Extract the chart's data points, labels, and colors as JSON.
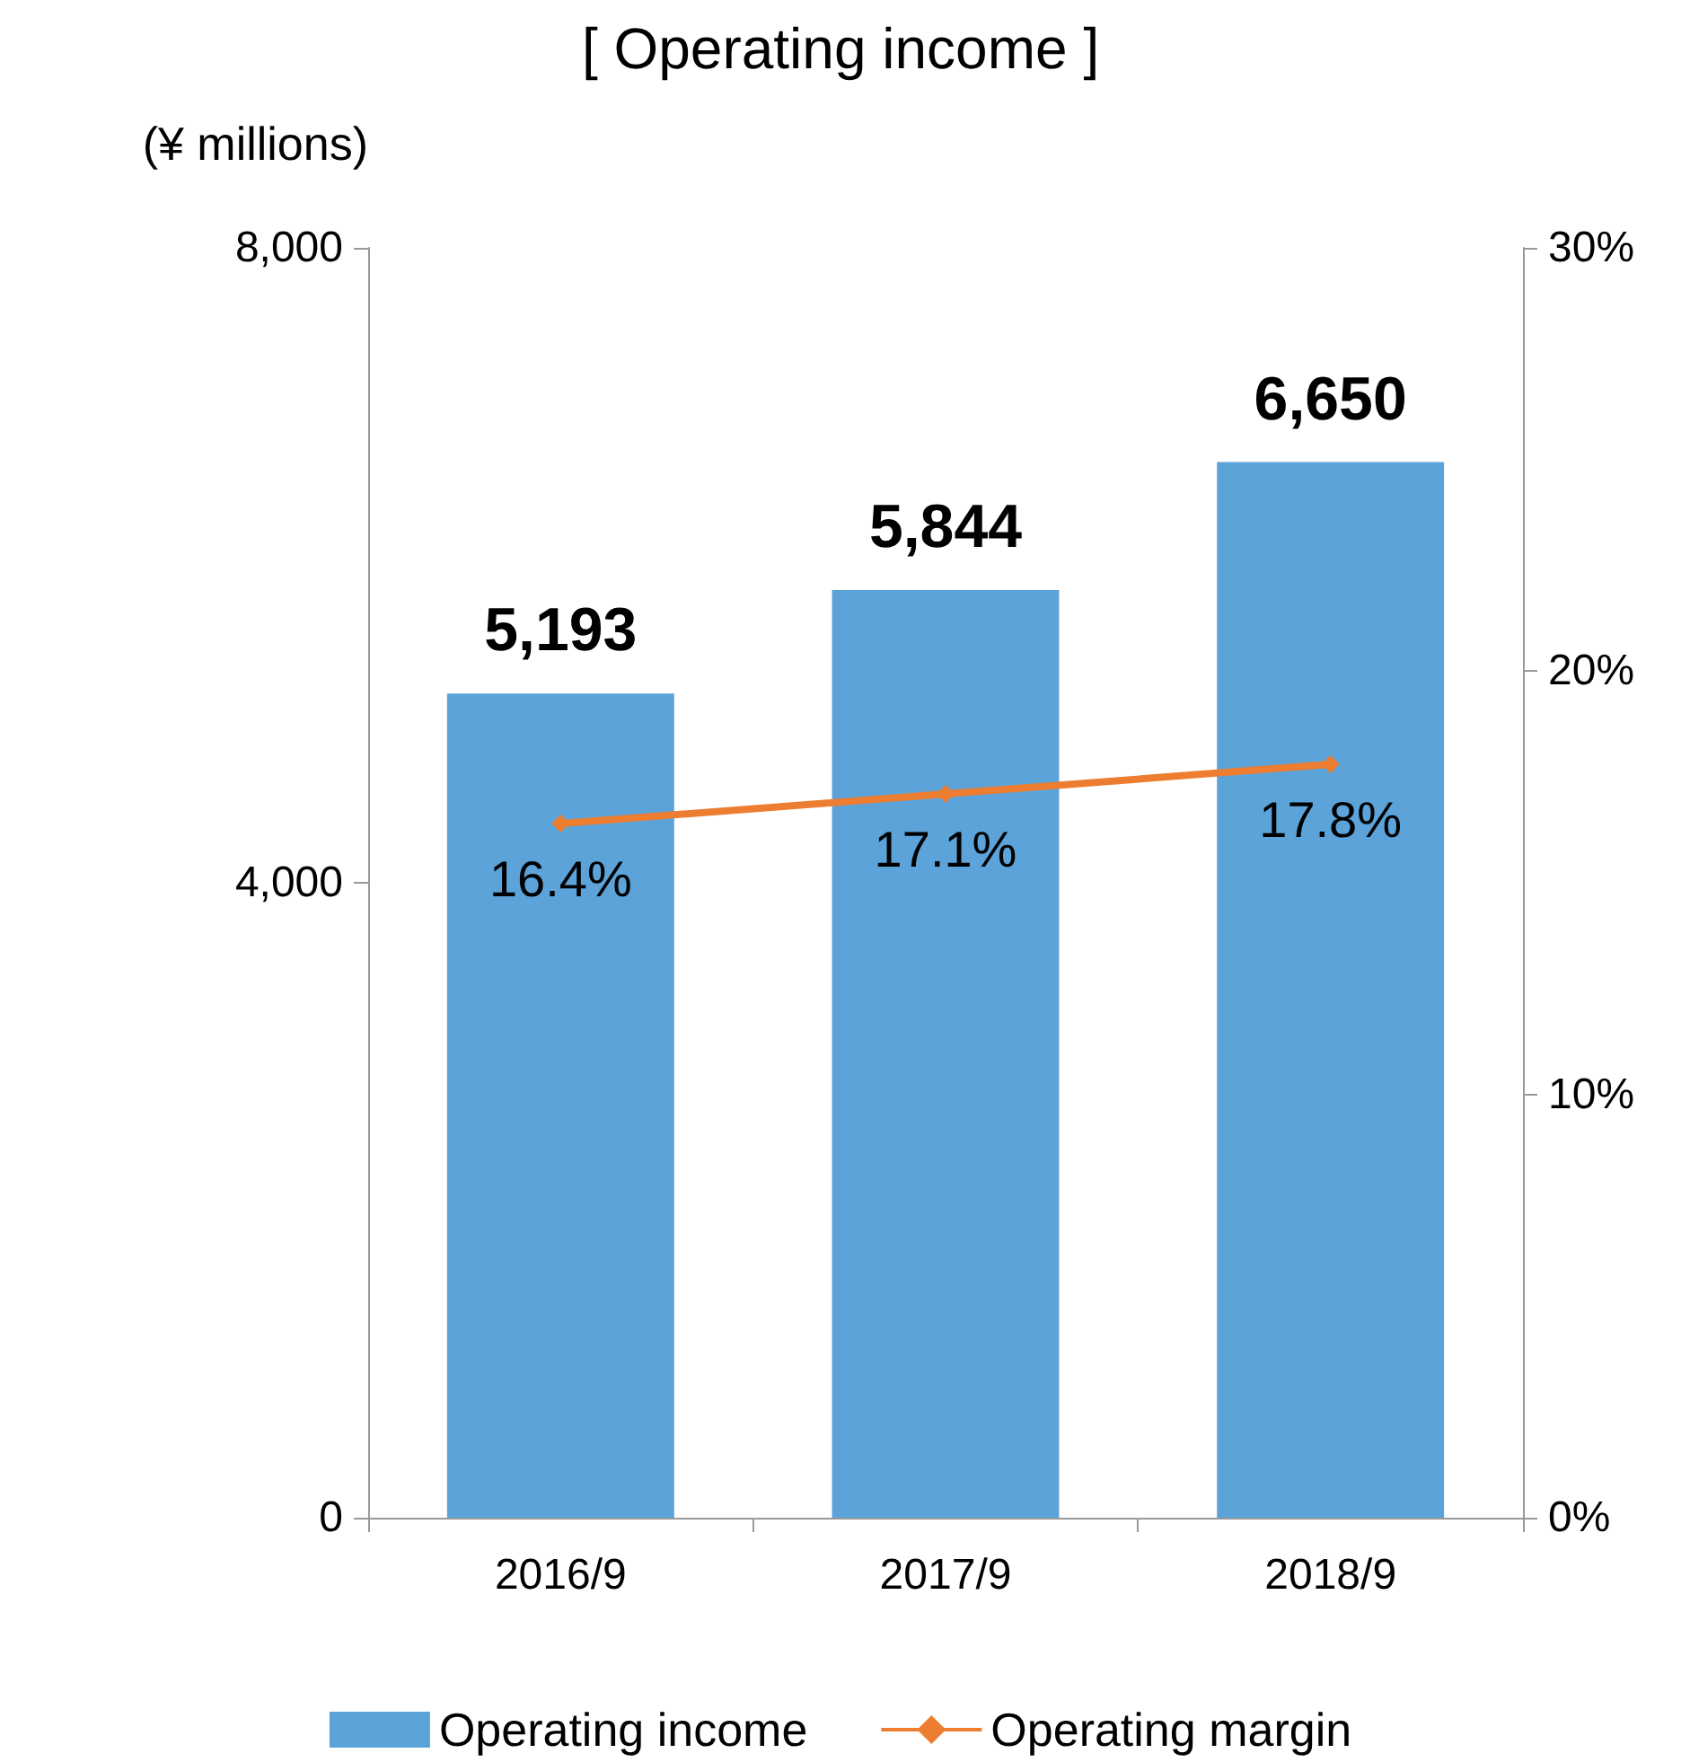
{
  "chart_data": {
    "type": "bar",
    "title": "[ Operating income ]",
    "ylabel": "(¥ millions)",
    "categories": [
      "2016/9",
      "2017/9",
      "2018/9"
    ],
    "series": [
      {
        "name": "Operating income",
        "color": "#5ba3d9",
        "values": [
          5193,
          5844,
          6650
        ],
        "value_labels": [
          "5,193",
          "5,844",
          "6,650"
        ]
      },
      {
        "name": "Operating margin",
        "type": "line",
        "axis": "y2",
        "color": "#ed7d31",
        "marker": "diamond",
        "values": [
          16.4,
          17.1,
          17.8
        ],
        "value_labels": [
          "16.4%",
          "17.1%",
          "17.8%"
        ]
      }
    ],
    "ylim": [
      0,
      8000
    ],
    "yticks": [
      {
        "value": 0,
        "label": "0"
      },
      {
        "value": 4000,
        "label": "4,000"
      },
      {
        "value": 8000,
        "label": "8,000"
      }
    ],
    "y2lim": [
      0,
      30
    ],
    "y2ticks": [
      {
        "value": 0,
        "label": "0%"
      },
      {
        "value": 10,
        "label": "10%"
      },
      {
        "value": 20,
        "label": "20%"
      },
      {
        "value": 30,
        "label": "30%"
      }
    ],
    "grid": false,
    "legend": "bottom"
  }
}
